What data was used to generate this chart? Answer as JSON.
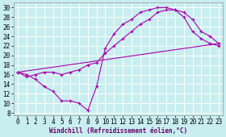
{
  "xlabel": "Windchill (Refroidissement éolien,°C)",
  "bg_color": "#c8eef0",
  "grid_color": "#ffffff",
  "line_color": "#aa00aa",
  "xlim": [
    -0.5,
    23.5
  ],
  "ylim": [
    7.5,
    31.0
  ],
  "xticks": [
    0,
    1,
    2,
    3,
    4,
    5,
    6,
    7,
    8,
    9,
    10,
    11,
    12,
    13,
    14,
    15,
    16,
    17,
    18,
    19,
    20,
    21,
    22,
    23
  ],
  "yticks": [
    8,
    10,
    12,
    14,
    16,
    18,
    20,
    22,
    24,
    26,
    28,
    30
  ],
  "line1_x": [
    0,
    1,
    2,
    3,
    4,
    5,
    6,
    7,
    8,
    9,
    10,
    11,
    12,
    13,
    14,
    15,
    16,
    17,
    18,
    19,
    20,
    21,
    22,
    23
  ],
  "line1_y": [
    16.5,
    16.0,
    15.0,
    13.5,
    12.5,
    10.5,
    10.5,
    10.0,
    8.5,
    13.5,
    21.5,
    24.5,
    26.5,
    27.5,
    29.0,
    29.5,
    30.0,
    30.0,
    29.5,
    29.0,
    27.5,
    25.0,
    24.0,
    22.5
  ],
  "line2_x": [
    0,
    1,
    2,
    3,
    4,
    5,
    6,
    7,
    8,
    9,
    10,
    11,
    12,
    13,
    14,
    15,
    16,
    17,
    18,
    19,
    20,
    21,
    22,
    23
  ],
  "line2_y": [
    16.5,
    15.5,
    16.0,
    16.5,
    16.5,
    16.0,
    16.5,
    17.0,
    18.0,
    18.5,
    20.5,
    22.0,
    23.5,
    25.0,
    26.5,
    27.5,
    29.0,
    29.5,
    29.5,
    28.0,
    25.0,
    23.5,
    22.5,
    22.0
  ],
  "line3_x": [
    0,
    23
  ],
  "line3_y": [
    16.5,
    22.5
  ],
  "xlabel_color": "#660066",
  "xlabel_fontsize": 5.5,
  "tick_fontsize": 5.5,
  "linewidth": 0.8,
  "markersize": 3,
  "marker": "+"
}
